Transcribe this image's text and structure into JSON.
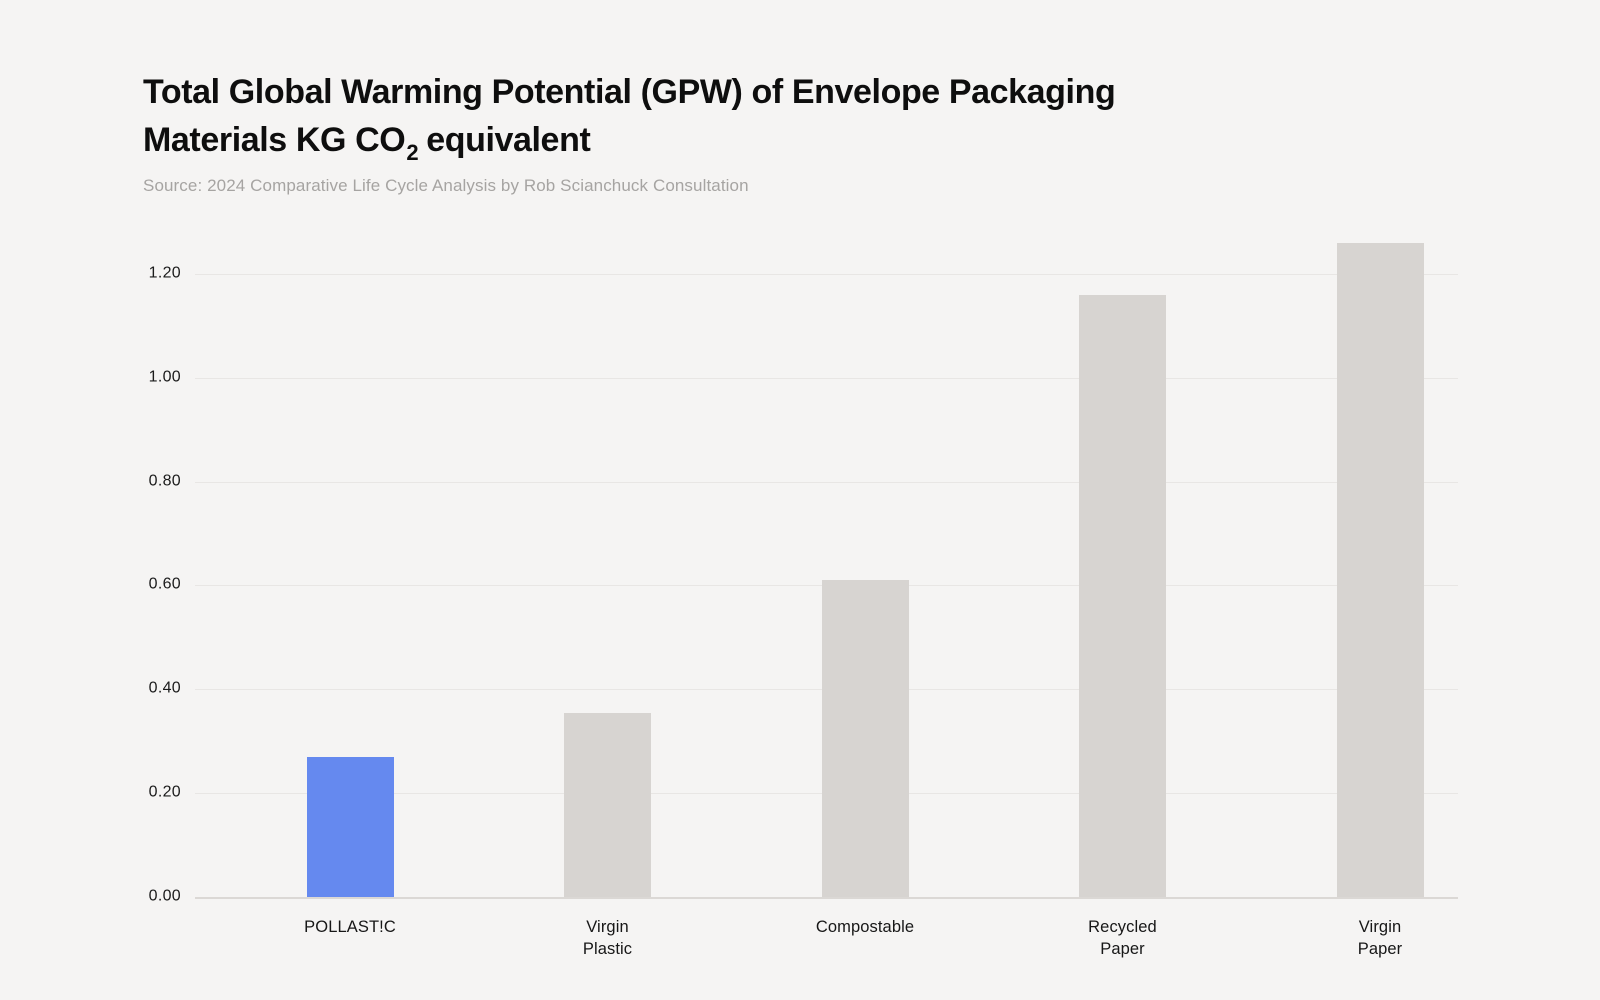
{
  "page": {
    "background": "#f5f4f3"
  },
  "header": {
    "title_line1": "Total Global Warming Potential (GPW) of Envelope Packaging",
    "title_line2_prefix": "Materials KG CO",
    "title_line2_sub": "2",
    "title_line2_suffix": " equivalent",
    "source": "Source: 2024 Comparative Life Cycle Analysis by Rob Scianchuck Consultation"
  },
  "chart_data": {
    "type": "bar",
    "title": "Total Global Warming Potential (GPW) of Envelope Packaging Materials KG CO2 equivalent",
    "source": "Source: 2024 Comparative Life Cycle Analysis by Rob Scianchuck Consultation",
    "categories": [
      "POLLAST!C",
      "Virgin\nPlastic",
      "Compostable",
      "Recycled\nPaper",
      "Virgin\nPaper"
    ],
    "values": [
      0.27,
      0.355,
      0.61,
      1.16,
      1.26
    ],
    "bar_colors": [
      "#6589ef",
      "#d7d4d1",
      "#d7d4d1",
      "#d7d4d1",
      "#d7d4d1"
    ],
    "highlight_color": "#6589ef",
    "default_bar_color": "#d7d4d1",
    "xlabel": "",
    "ylabel": "",
    "y_axis": {
      "ticks": [
        "0.00",
        "0.20",
        "0.40",
        "0.60",
        "0.80",
        "1.00",
        "1.20"
      ],
      "tick_values": [
        0,
        0.2,
        0.4,
        0.6,
        0.8,
        1.0,
        1.2
      ],
      "ylim": [
        0,
        1.3
      ]
    },
    "grid": true,
    "legend": false
  }
}
